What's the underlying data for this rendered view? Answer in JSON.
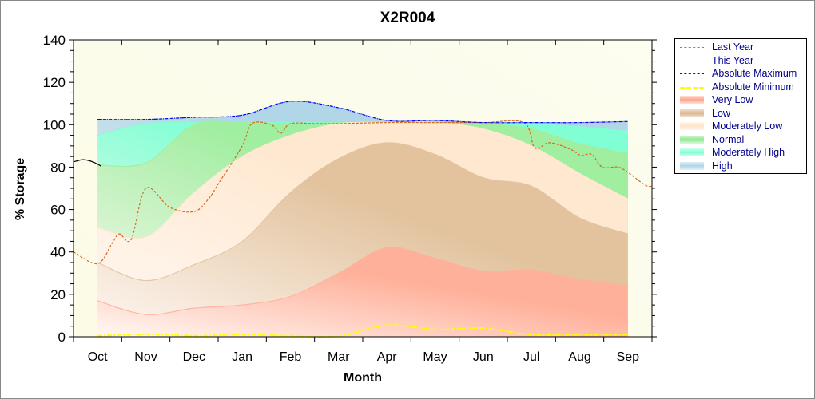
{
  "chart_data": {
    "type": "area",
    "title": "X2R004",
    "xlabel": "Month",
    "ylabel": "% Storage",
    "ylim": [
      0,
      140
    ],
    "yticks": [
      0,
      20,
      40,
      60,
      80,
      100,
      120,
      140
    ],
    "categories": [
      "Oct",
      "Nov",
      "Dec",
      "Jan",
      "Feb",
      "Mar",
      "Apr",
      "May",
      "Jun",
      "Jul",
      "Aug",
      "Sep"
    ],
    "legend_position": "right",
    "bands": [
      {
        "name": "Very Low",
        "color": "#ffb09a",
        "values": [
          17,
          10.5,
          13.5,
          15,
          19,
          30,
          42,
          37,
          31,
          31.5,
          27,
          24
        ]
      },
      {
        "name": "Low",
        "color": "#e2c39e",
        "values": [
          35,
          26.5,
          34,
          45,
          68,
          84,
          91.5,
          86,
          75,
          71,
          56,
          48.5
        ]
      },
      {
        "name": "Moderately Low",
        "color": "#ffe8d0",
        "values": [
          51.5,
          47,
          68,
          85,
          95,
          100.5,
          101,
          101,
          98,
          90,
          77,
          65
        ]
      },
      {
        "name": "Normal",
        "color": "#a0eea0",
        "values": [
          81,
          82,
          100,
          101,
          100.5,
          101,
          101,
          101,
          100.5,
          98,
          91,
          86.5
        ]
      },
      {
        "name": "Moderately High",
        "color": "#80ffd4",
        "values": [
          95,
          100.5,
          101,
          101,
          101,
          101,
          101,
          101,
          101,
          100.5,
          99,
          97
        ]
      },
      {
        "name": "High",
        "color": "#b0d6e8",
        "values": [
          102.5,
          102.5,
          103.5,
          104.5,
          111,
          108,
          102,
          102,
          101,
          101,
          101,
          101.5
        ]
      }
    ],
    "lines": [
      {
        "name": "Last Year",
        "color": "#d2691e",
        "dash": "3,2",
        "x": [
          -0.5,
          0,
          0.3,
          0.45,
          0.7,
          1,
          1.5,
          2,
          2.3,
          2.5,
          3,
          3.2,
          3.6,
          3.8,
          4,
          4.5,
          5,
          6,
          7,
          8,
          8.84,
          9.07,
          9.37,
          9.8,
          10.03,
          10.25,
          10.47,
          10.8,
          11.03,
          11.36,
          11.5
        ],
        "y": [
          40,
          34.5,
          44,
          48.5,
          46,
          70,
          61,
          59,
          65,
          72,
          90,
          100.5,
          100,
          96,
          100.5,
          100.5,
          100.5,
          101,
          101,
          101,
          101,
          89,
          91.5,
          88.5,
          85.5,
          86,
          80,
          80,
          77,
          71.5,
          71
        ]
      },
      {
        "name": "This Year",
        "color": "#000000",
        "dash": "",
        "x": [
          -0.5,
          -0.3,
          -0.1,
          0.07
        ],
        "y": [
          82.5,
          83.5,
          82.5,
          80.5
        ]
      },
      {
        "name": "Absolute Maximum",
        "color": "#0000ff",
        "dash": "4,1,1,1",
        "x": [
          0,
          1,
          2,
          3,
          4,
          5,
          6,
          7,
          8,
          9,
          10,
          11
        ],
        "y": [
          102.5,
          102.5,
          103.5,
          104.5,
          111,
          108,
          102,
          102,
          101,
          101,
          101,
          101.5
        ]
      },
      {
        "name": "Absolute Minimum",
        "color": "#ffff00",
        "dash": "6,2,2,2",
        "x": [
          0,
          1,
          2,
          3,
          4,
          5,
          6,
          7,
          8,
          9,
          10,
          11
        ],
        "y": [
          0.5,
          1.2,
          0.5,
          1,
          0.5,
          0.3,
          5.5,
          3.5,
          4,
          1,
          1,
          1
        ]
      }
    ]
  },
  "legend": [
    {
      "label": "Last Year",
      "kind": "line",
      "color": "#d2691e"
    },
    {
      "label": "This Year",
      "kind": "line",
      "color": "#000000"
    },
    {
      "label": "Absolute Maximum",
      "kind": "line",
      "color": "#0000ff"
    },
    {
      "label": "Absolute Minimum",
      "kind": "line",
      "color": "#ffff00"
    },
    {
      "label": "Very Low",
      "kind": "band",
      "color": "#ffa58c"
    },
    {
      "label": "Low",
      "kind": "band",
      "color": "#d9b48c"
    },
    {
      "label": "Moderately Low",
      "kind": "band",
      "color": "#ffe4c8"
    },
    {
      "label": "Normal",
      "kind": "band",
      "color": "#90e890"
    },
    {
      "label": "Moderately High",
      "kind": "band",
      "color": "#80ffd4"
    },
    {
      "label": "High",
      "kind": "band",
      "color": "#b0d6e8"
    }
  ]
}
